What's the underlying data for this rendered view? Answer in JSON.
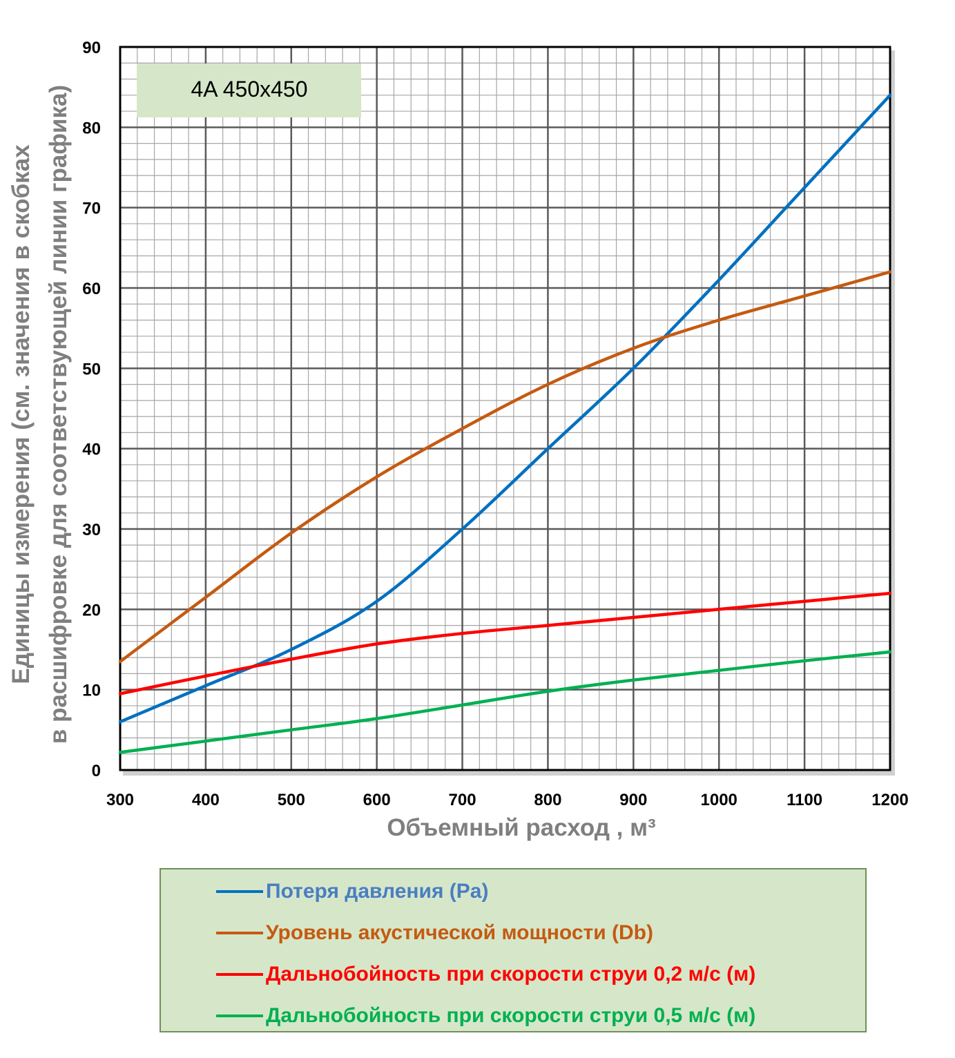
{
  "chart_data": {
    "type": "line",
    "annotation": "4A 450x450",
    "xlabel": "Объемный расход , м³",
    "ylabel_line1": "Единицы измерения (см. значения в скобках",
    "ylabel_line2": "в расшифровке для соответствующей линии графика)",
    "xlim": [
      300,
      1200
    ],
    "ylim": [
      0,
      90
    ],
    "xticks": [
      "300",
      "400",
      "500",
      "600",
      "700",
      "800",
      "900",
      "1000",
      "1100",
      "1200"
    ],
    "yticks": [
      "0",
      "10",
      "20",
      "30",
      "40",
      "50",
      "60",
      "70",
      "80",
      "90"
    ],
    "grid": true,
    "x": [
      300,
      400,
      500,
      600,
      700,
      800,
      900,
      1000,
      1100,
      1200
    ],
    "series": [
      {
        "name": "Потеря давления (Pa)",
        "color": "#0070c0",
        "values": [
          6,
          10.5,
          15,
          21,
          30,
          40,
          50,
          61,
          72.5,
          84
        ]
      },
      {
        "name": "Уровень акустической мощности (Db)",
        "color": "#c55a11",
        "values": [
          13.5,
          21.5,
          29.5,
          36.5,
          42.5,
          48,
          52.5,
          56,
          59,
          62
        ]
      },
      {
        "name": "Дальнобойность при скорости струи 0,2 м/с (м)",
        "color": "#ff0000",
        "values": [
          9.5,
          11.7,
          13.8,
          15.7,
          17,
          18,
          19,
          20,
          21,
          22
        ]
      },
      {
        "name": "Дальнобойность при скорости струи 0,5 м/с (м)",
        "color": "#00b050",
        "values": [
          2.2,
          3.6,
          5,
          6.4,
          8.1,
          9.8,
          11.2,
          12.4,
          13.6,
          14.7
        ]
      }
    ],
    "legend_position": "bottom"
  },
  "colors": {
    "annotation_bg": "#d6e7c9",
    "legend_bg": "#d6e7c9",
    "axis_title": "#7f7f7f"
  }
}
